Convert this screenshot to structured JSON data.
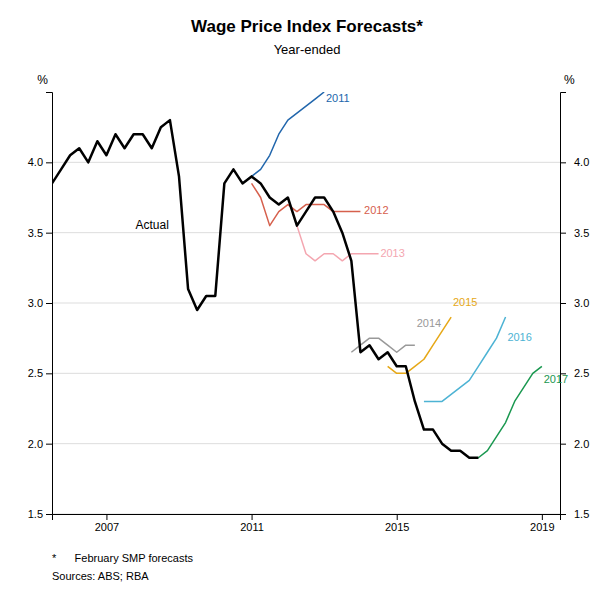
{
  "chart_data": {
    "type": "line",
    "title": "Wage Price Index Forecasts*",
    "subtitle": "Year-ended",
    "ylabel": "%",
    "y2label": "%",
    "footnotes": [
      "*      February SMP forecasts",
      "Sources: ABS; RBA"
    ],
    "xlim": [
      2005.5,
      2019.5
    ],
    "xticks": [
      2007,
      2011,
      2015,
      2019
    ],
    "ylim": [
      1.5,
      4.5
    ],
    "yticks": [
      1.5,
      {
        "value": 2.0,
        "label": "2.0"
      },
      2.5,
      {
        "value": 3.0,
        "label": "3.0"
      },
      3.5,
      {
        "value": 4.0,
        "label": "4.0"
      }
    ],
    "y2lim": [
      1.5,
      4.5
    ],
    "y2ticks": [
      1.5,
      {
        "value": 2.0,
        "label": "2.0"
      },
      2.5,
      {
        "value": 3.0,
        "label": "3.0"
      },
      3.5,
      {
        "value": 4.0,
        "label": "4.0"
      }
    ],
    "grid": true,
    "series": [
      {
        "name": "Actual",
        "color": "#000000",
        "x": [
          2005.5,
          2005.75,
          2006.0,
          2006.25,
          2006.5,
          2006.75,
          2007.0,
          2007.25,
          2007.5,
          2007.75,
          2008.0,
          2008.25,
          2008.5,
          2008.75,
          2009.0,
          2009.25,
          2009.5,
          2009.75,
          2010.0,
          2010.25,
          2010.5,
          2010.75,
          2011.0,
          2011.25,
          2011.5,
          2011.75,
          2012.0,
          2012.25,
          2012.5,
          2012.75,
          2013.0,
          2013.25,
          2013.5,
          2013.75,
          2014.0,
          2014.25,
          2014.5,
          2014.75,
          2015.0,
          2015.25,
          2015.5,
          2015.75,
          2016.0,
          2016.25,
          2016.5,
          2016.75,
          2017.0,
          2017.25
        ],
        "values": [
          3.85,
          3.95,
          4.05,
          4.1,
          4.0,
          4.15,
          4.05,
          4.2,
          4.1,
          4.2,
          4.2,
          4.1,
          4.25,
          4.3,
          3.9,
          3.1,
          2.95,
          3.05,
          3.05,
          3.85,
          3.95,
          3.85,
          3.9,
          3.85,
          3.75,
          3.7,
          3.75,
          3.55,
          3.65,
          3.75,
          3.75,
          3.65,
          3.5,
          3.3,
          2.65,
          2.7,
          2.6,
          2.65,
          2.55,
          2.55,
          2.3,
          2.1,
          2.1,
          2.0,
          1.95,
          1.95,
          1.9,
          1.9
        ],
        "label_x": 2007.8,
        "label_y": 3.55
      },
      {
        "name": "2011",
        "color": "#2166ac",
        "x": [
          2010.75,
          2011.0,
          2011.25,
          2011.5,
          2011.75,
          2012.0,
          2012.25,
          2012.5,
          2012.75,
          2013.0
        ],
        "values": [
          3.85,
          3.9,
          3.95,
          4.05,
          4.2,
          4.3,
          4.35,
          4.4,
          4.45,
          4.5
        ],
        "label_x": 2013.05,
        "label_y": 4.45
      },
      {
        "name": "2012",
        "color": "#d6604d",
        "x": [
          2011.0,
          2011.25,
          2011.5,
          2011.75,
          2012.0,
          2012.25,
          2012.5,
          2012.75,
          2013.0,
          2013.25,
          2013.5,
          2013.75,
          2014.0
        ],
        "values": [
          3.85,
          3.75,
          3.55,
          3.65,
          3.7,
          3.65,
          3.7,
          3.7,
          3.7,
          3.65,
          3.65,
          3.65,
          3.65
        ],
        "label_x": 2014.1,
        "label_y": 3.65
      },
      {
        "name": "2013",
        "color": "#f4a6b0",
        "x": [
          2012.0,
          2012.25,
          2012.5,
          2012.75,
          2013.0,
          2013.25,
          2013.5,
          2013.75,
          2014.0,
          2014.25,
          2014.5
        ],
        "values": [
          3.75,
          3.55,
          3.35,
          3.3,
          3.35,
          3.35,
          3.3,
          3.35,
          3.35,
          3.35,
          3.35
        ],
        "label_x": 2014.55,
        "label_y": 3.35
      },
      {
        "name": "2014",
        "color": "#999999",
        "x": [
          2013.75,
          2014.0,
          2014.25,
          2014.5,
          2014.75,
          2015.0,
          2015.25,
          2015.5
        ],
        "values": [
          2.65,
          2.7,
          2.75,
          2.75,
          2.7,
          2.65,
          2.7,
          2.7
        ],
        "label_x": 2015.55,
        "label_y": 2.85
      },
      {
        "name": "2015",
        "color": "#e6a817",
        "x": [
          2014.75,
          2015.0,
          2015.25,
          2015.5,
          2015.75,
          2016.0,
          2016.25,
          2016.5
        ],
        "values": [
          2.55,
          2.5,
          2.5,
          2.55,
          2.6,
          2.7,
          2.8,
          2.9
        ],
        "label_x": 2016.55,
        "label_y": 3.0
      },
      {
        "name": "2016",
        "color": "#4db3d4",
        "x": [
          2015.75,
          2016.0,
          2016.25,
          2016.5,
          2016.75,
          2017.0,
          2017.25,
          2017.5,
          2017.75,
          2018.0
        ],
        "values": [
          2.3,
          2.3,
          2.3,
          2.35,
          2.4,
          2.45,
          2.55,
          2.65,
          2.75,
          2.9
        ],
        "label_x": 2018.05,
        "label_y": 2.75
      },
      {
        "name": "2017",
        "color": "#1a9850",
        "x": [
          2017.0,
          2017.25,
          2017.5,
          2017.75,
          2018.0,
          2018.25,
          2018.5,
          2018.75,
          2019.0
        ],
        "values": [
          1.9,
          1.9,
          1.95,
          2.05,
          2.15,
          2.3,
          2.4,
          2.5,
          2.55
        ],
        "label_x": 2019.05,
        "label_y": 2.45
      }
    ]
  }
}
